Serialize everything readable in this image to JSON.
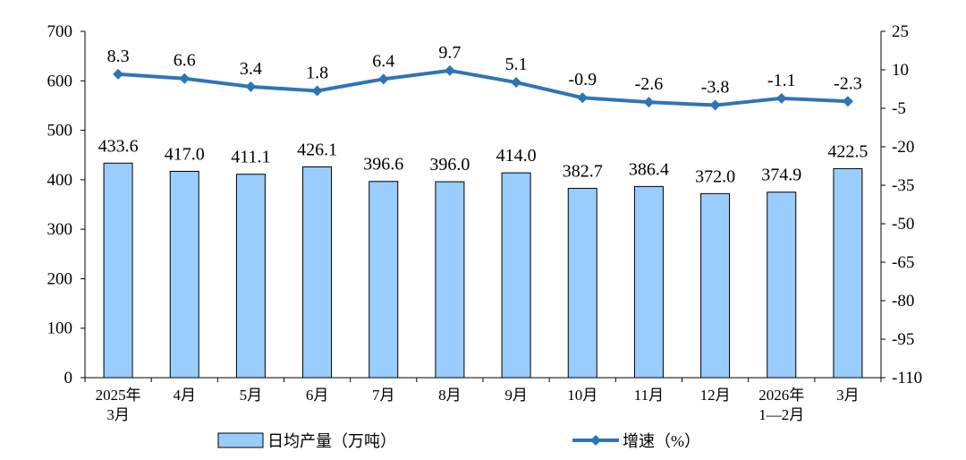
{
  "chart_data": {
    "type": "bar",
    "categories": [
      [
        "2025年",
        "3月"
      ],
      [
        "4月"
      ],
      [
        "5月"
      ],
      [
        "6月"
      ],
      [
        "7月"
      ],
      [
        "8月"
      ],
      [
        "9月"
      ],
      [
        "10月"
      ],
      [
        "11月"
      ],
      [
        "12月"
      ],
      [
        "2026年",
        "1—2月"
      ],
      [
        "3月"
      ]
    ],
    "bar_series": {
      "name": "日均产量（万吨）",
      "values": [
        433.6,
        417.0,
        411.1,
        426.1,
        396.6,
        396.0,
        414.0,
        382.7,
        386.4,
        372.0,
        374.9,
        422.5
      ],
      "labels": [
        "433.6",
        "417.0",
        "411.1",
        "426.1",
        "396.6",
        "396.0",
        "414.0",
        "382.7",
        "386.4",
        "372.0",
        "374.9",
        "422.5"
      ],
      "color": "#99CCFF",
      "axis": "left"
    },
    "line_series": {
      "name": "增速（%）",
      "values": [
        8.3,
        6.6,
        3.4,
        1.8,
        6.4,
        9.7,
        5.1,
        -0.9,
        -2.6,
        -3.8,
        -1.1,
        -2.3
      ],
      "labels": [
        "8.3",
        "6.6",
        "3.4",
        "1.8",
        "6.4",
        "9.7",
        "5.1",
        "-0.9",
        "-2.6",
        "-3.8",
        "-1.1",
        "-2.3"
      ],
      "color": "#2E75B6",
      "axis": "right"
    },
    "y_left": {
      "min": 0,
      "max": 700,
      "ticks": [
        0,
        100,
        200,
        300,
        400,
        500,
        600,
        700
      ]
    },
    "y_right": {
      "min": -110,
      "max": 25,
      "ticks": [
        25,
        10,
        -5,
        -20,
        -35,
        -50,
        -65,
        -80,
        -95,
        -110
      ]
    },
    "legend": {
      "position": "bottom"
    },
    "grid": false
  }
}
